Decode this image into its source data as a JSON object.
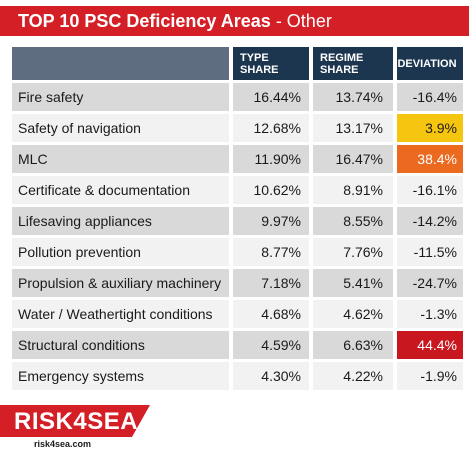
{
  "title": {
    "bold": "TOP 10 PSC Deficiency Areas",
    "rest": " - Other"
  },
  "header": {
    "area": "",
    "type_share_line1": "TYPE",
    "type_share_line2": "SHARE",
    "regime_share_line1": "REGIME",
    "regime_share_line2": "SHARE",
    "deviation": "DEVIATION"
  },
  "rows": [
    {
      "area": "Fire safety",
      "type_share": "16.44%",
      "regime_share": "13.74%",
      "deviation": "-16.4%"
    },
    {
      "area": "Safety of navigation",
      "type_share": "12.68%",
      "regime_share": "13.17%",
      "deviation": "3.9%"
    },
    {
      "area": "MLC",
      "type_share": "11.90%",
      "regime_share": "16.47%",
      "deviation": "38.4%"
    },
    {
      "area": "Certificate & documentation",
      "type_share": "10.62%",
      "regime_share": "8.91%",
      "deviation": "-16.1%"
    },
    {
      "area": "Lifesaving appliances",
      "type_share": "9.97%",
      "regime_share": "8.55%",
      "deviation": "-14.2%"
    },
    {
      "area": "Pollution prevention",
      "type_share": "8.77%",
      "regime_share": "7.76%",
      "deviation": "-11.5%"
    },
    {
      "area": "Propulsion & auxiliary machinery",
      "type_share": "7.18%",
      "regime_share": "5.41%",
      "deviation": "-24.7%"
    },
    {
      "area": "Water / Weathertight conditions",
      "type_share": "4.68%",
      "regime_share": "4.62%",
      "deviation": "-1.3%"
    },
    {
      "area": "Structural conditions",
      "type_share": "4.59%",
      "regime_share": "6.63%",
      "deviation": "44.4%"
    },
    {
      "area": "Emergency systems",
      "type_share": "4.30%",
      "regime_share": "4.22%",
      "deviation": "-1.9%"
    }
  ],
  "highlight_colors": {
    "yellow": "#f6c510",
    "orange": "#eb6a1f",
    "red": "#c8171e"
  },
  "logo": {
    "name": "RISK4SEA",
    "url": "risk4sea.com"
  }
}
